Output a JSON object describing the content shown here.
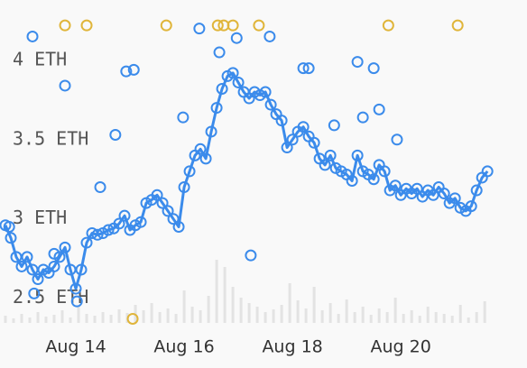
{
  "chart_data": {
    "type": "scatter",
    "xlim": [
      12.6,
      22.33
    ],
    "xticks": [
      {
        "value": 14,
        "label": "Aug 14"
      },
      {
        "value": 16,
        "label": "Aug 16"
      },
      {
        "value": 18,
        "label": "Aug 18"
      },
      {
        "value": 20,
        "label": "Aug 20"
      }
    ],
    "ylim": [
      2.06,
      4.38
    ],
    "yticks": [
      {
        "value": 2.5,
        "label": "2.5 ETH"
      },
      {
        "value": 3,
        "label": "3 ETH"
      },
      {
        "value": 3.5,
        "label": "3.5 ETH"
      },
      {
        "value": 4,
        "label": "4 ETH"
      }
    ],
    "y2lim": [
      0,
      100
    ],
    "series": [
      {
        "color": "#3b8beb",
        "line": true,
        "x": [
          12.7,
          12.8,
          12.9,
          13.0,
          13.1,
          13.2,
          13.3,
          13.4,
          13.5,
          13.6,
          13.7,
          13.8,
          13.9,
          14.0,
          14.1,
          14.2,
          14.3,
          14.4,
          14.5,
          14.6,
          14.7,
          14.8,
          14.9,
          15.0,
          15.1,
          15.2,
          15.3,
          15.4,
          15.5,
          15.6,
          15.7,
          15.8,
          15.9,
          16.0,
          16.1,
          16.2,
          16.3,
          16.4,
          16.5,
          16.6,
          16.7,
          16.8,
          16.9,
          17.0,
          17.1,
          17.2,
          17.3,
          17.4,
          17.5,
          17.6,
          17.7,
          17.8,
          17.9,
          18.0,
          18.1,
          18.2,
          18.3,
          18.4,
          18.5,
          18.6,
          18.7,
          18.8,
          18.9,
          19.0,
          19.1,
          19.2,
          19.3,
          19.4,
          19.5,
          19.6,
          19.7,
          19.8,
          19.9,
          20.0,
          20.1,
          20.2,
          20.3,
          20.4,
          20.5,
          20.6,
          20.7,
          20.8,
          20.9,
          21.0,
          21.1,
          21.2,
          21.3,
          21.4,
          21.5,
          21.6
        ],
        "values": [
          2.96,
          2.88,
          2.76,
          2.7,
          2.76,
          2.68,
          2.62,
          2.68,
          2.66,
          2.7,
          2.76,
          2.82,
          2.68,
          2.56,
          2.68,
          2.85,
          2.91,
          2.9,
          2.91,
          2.93,
          2.94,
          2.97,
          3.02,
          2.93,
          2.96,
          2.98,
          3.1,
          3.12,
          3.15,
          3.1,
          3.05,
          3.0,
          2.95,
          3.2,
          3.3,
          3.4,
          3.44,
          3.38,
          3.55,
          3.7,
          3.82,
          3.9,
          3.92,
          3.86,
          3.8,
          3.76,
          3.8,
          3.78,
          3.8,
          3.72,
          3.66,
          3.62,
          3.45,
          3.5,
          3.55,
          3.58,
          3.52,
          3.48,
          3.38,
          3.34,
          3.4,
          3.32,
          3.3,
          3.28,
          3.24,
          3.4,
          3.3,
          3.28,
          3.25,
          3.34,
          3.3,
          3.18,
          3.21,
          3.15,
          3.19,
          3.16,
          3.19,
          3.14,
          3.18,
          3.15,
          3.2,
          3.16,
          3.1,
          3.13,
          3.07,
          3.05,
          3.08,
          3.18,
          3.26,
          3.3
        ]
      },
      {
        "color": "#3b8beb",
        "line": false,
        "x": [
          13.2,
          13.8,
          14.73,
          14.93,
          15.07,
          15.98,
          16.28,
          16.65,
          16.97,
          17.58,
          17.23,
          14.45,
          18.2,
          18.3,
          19.2,
          19.5,
          19.6,
          19.93,
          18.77,
          19.3,
          14.02,
          13.23,
          12.77,
          13.6
        ],
        "values": [
          4.15,
          3.84,
          3.53,
          3.93,
          3.94,
          3.64,
          4.2,
          4.05,
          4.14,
          4.15,
          2.77,
          3.2,
          3.95,
          3.95,
          3.99,
          3.95,
          3.69,
          3.5,
          3.59,
          3.64,
          2.48,
          2.53,
          2.95,
          2.78
        ]
      },
      {
        "color": "#e0b53a",
        "line": false,
        "x": [
          13.8,
          14.2,
          15.67,
          16.62,
          16.73,
          16.9,
          17.38,
          19.77,
          21.05,
          15.05
        ],
        "values": [
          4.22,
          4.22,
          4.22,
          4.22,
          4.22,
          4.22,
          4.22,
          4.22,
          4.22,
          2.37
        ]
      }
    ],
    "volume": {
      "color": "#e3e3e3",
      "x": [
        12.7,
        12.85,
        13.0,
        13.15,
        13.3,
        13.45,
        13.6,
        13.75,
        13.9,
        14.05,
        14.2,
        14.35,
        14.5,
        14.65,
        14.8,
        14.95,
        15.1,
        15.25,
        15.4,
        15.55,
        15.7,
        15.85,
        16.0,
        16.15,
        16.3,
        16.45,
        16.6,
        16.75,
        16.9,
        17.05,
        17.2,
        17.35,
        17.5,
        17.65,
        17.8,
        17.95,
        18.1,
        18.25,
        18.4,
        18.55,
        18.7,
        18.85,
        19.0,
        19.15,
        19.3,
        19.45,
        19.6,
        19.75,
        19.9,
        20.05,
        20.2,
        20.35,
        20.5,
        20.65,
        20.8,
        20.95,
        21.1,
        21.25,
        21.4,
        21.55
      ],
      "values": [
        8,
        5,
        10,
        6,
        12,
        7,
        9,
        14,
        6,
        18,
        10,
        8,
        12,
        9,
        15,
        11,
        20,
        14,
        22,
        12,
        16,
        10,
        36,
        18,
        14,
        30,
        70,
        62,
        40,
        28,
        22,
        18,
        12,
        15,
        20,
        44,
        25,
        16,
        40,
        14,
        22,
        10,
        26,
        12,
        18,
        9,
        16,
        12,
        28,
        10,
        14,
        8,
        18,
        12,
        10,
        8,
        20,
        6,
        12,
        24
      ]
    }
  }
}
